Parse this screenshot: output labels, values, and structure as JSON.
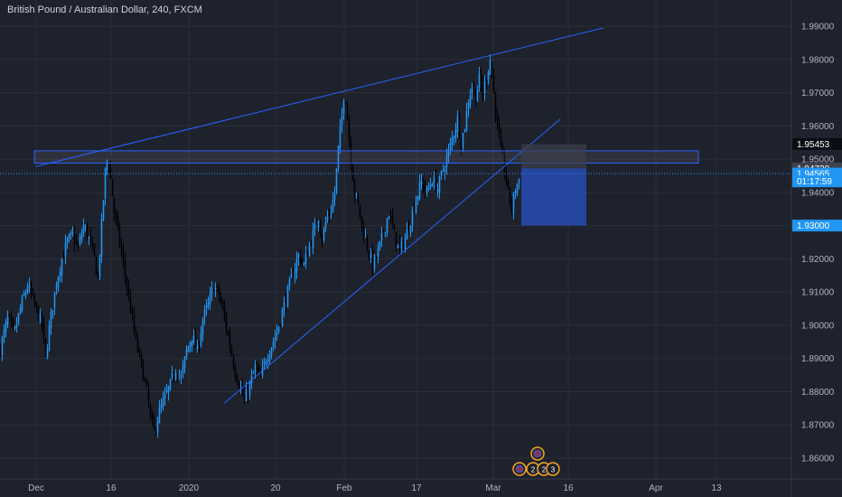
{
  "header": {
    "title": "British Pound / Australian Dollar, 240, FXCM"
  },
  "colors": {
    "background": "#1e222d",
    "up_candle": "#2196f3",
    "down_candle": "#000000",
    "trendline": "#2962ff",
    "grid": "#2a2e39",
    "axis_text": "#b2b5be",
    "target_zone": "#2962ff"
  },
  "chart_data": {
    "type": "candlestick",
    "x_ticks": [
      "Dec",
      "16",
      "2020",
      "20",
      "Feb",
      "17",
      "Mar",
      "16",
      "Apr",
      "13"
    ],
    "y_ticks": [
      "1.99000",
      "1.98000",
      "1.97000",
      "1.96000",
      "1.95000",
      "1.94000",
      "1.93000",
      "1.92000",
      "1.91000",
      "1.90000",
      "1.89000",
      "1.88000",
      "1.87000",
      "1.86000"
    ],
    "ylim": [
      1.856,
      1.998
    ],
    "price_path": [
      [
        0,
        1.893
      ],
      [
        8,
        1.902
      ],
      [
        15,
        1.897
      ],
      [
        22,
        1.905
      ],
      [
        30,
        1.912
      ],
      [
        38,
        1.906
      ],
      [
        46,
        1.9
      ],
      [
        50,
        1.89
      ],
      [
        55,
        1.901
      ],
      [
        62,
        1.913
      ],
      [
        68,
        1.92
      ],
      [
        74,
        1.925
      ],
      [
        80,
        1.927
      ],
      [
        86,
        1.923
      ],
      [
        92,
        1.93
      ],
      [
        98,
        1.926
      ],
      [
        104,
        1.92
      ],
      [
        108,
        1.914
      ],
      [
        112,
        1.93
      ],
      [
        116,
        1.946
      ],
      [
        119,
        1.951
      ],
      [
        122,
        1.944
      ],
      [
        126,
        1.934
      ],
      [
        132,
        1.925
      ],
      [
        138,
        1.915
      ],
      [
        144,
        1.905
      ],
      [
        150,
        1.895
      ],
      [
        156,
        1.888
      ],
      [
        162,
        1.88
      ],
      [
        166,
        1.872
      ],
      [
        170,
        1.868
      ],
      [
        176,
        1.874
      ],
      [
        182,
        1.878
      ],
      [
        188,
        1.882
      ],
      [
        194,
        1.887
      ],
      [
        200,
        1.884
      ],
      [
        206,
        1.892
      ],
      [
        212,
        1.897
      ],
      [
        218,
        1.892
      ],
      [
        224,
        1.902
      ],
      [
        230,
        1.906
      ],
      [
        236,
        1.912
      ],
      [
        242,
        1.909
      ],
      [
        248,
        1.902
      ],
      [
        254,
        1.894
      ],
      [
        260,
        1.886
      ],
      [
        266,
        1.881
      ],
      [
        270,
        1.877
      ],
      [
        276,
        1.882
      ],
      [
        282,
        1.887
      ],
      [
        288,
        1.884
      ],
      [
        294,
        1.89
      ],
      [
        300,
        1.894
      ],
      [
        306,
        1.898
      ],
      [
        312,
        1.904
      ],
      [
        318,
        1.91
      ],
      [
        324,
        1.916
      ],
      [
        330,
        1.921
      ],
      [
        336,
        1.918
      ],
      [
        342,
        1.924
      ],
      [
        348,
        1.929
      ],
      [
        352,
        1.933
      ],
      [
        356,
        1.926
      ],
      [
        360,
        1.931
      ],
      [
        366,
        1.935
      ],
      [
        370,
        1.94
      ],
      [
        374,
        1.953
      ],
      [
        378,
        1.963
      ],
      [
        381,
        1.972
      ],
      [
        384,
        1.962
      ],
      [
        388,
        1.95
      ],
      [
        392,
        1.94
      ],
      [
        396,
        1.936
      ],
      [
        400,
        1.93
      ],
      [
        406,
        1.924
      ],
      [
        412,
        1.918
      ],
      [
        418,
        1.922
      ],
      [
        424,
        1.928
      ],
      [
        430,
        1.934
      ],
      [
        436,
        1.927
      ],
      [
        442,
        1.922
      ],
      [
        448,
        1.926
      ],
      [
        454,
        1.932
      ],
      [
        460,
        1.938
      ],
      [
        466,
        1.943
      ],
      [
        472,
        1.94
      ],
      [
        478,
        1.944
      ],
      [
        484,
        1.941
      ],
      [
        490,
        1.947
      ],
      [
        496,
        1.952
      ],
      [
        502,
        1.958
      ],
      [
        506,
        1.962
      ],
      [
        510,
        1.955
      ],
      [
        514,
        1.96
      ],
      [
        518,
        1.968
      ],
      [
        522,
        1.972
      ],
      [
        526,
        1.969
      ],
      [
        530,
        1.974
      ],
      [
        534,
        1.97
      ],
      [
        538,
        1.975
      ],
      [
        542,
        1.98
      ],
      [
        546,
        1.97
      ],
      [
        550,
        1.96
      ],
      [
        554,
        1.952
      ],
      [
        558,
        1.947
      ],
      [
        562,
        1.94
      ],
      [
        566,
        1.935
      ],
      [
        570,
        1.941
      ],
      [
        574,
        1.944
      ]
    ],
    "resistance_zone": {
      "x_start": 38,
      "x_end": 773,
      "y_low": 1.9488,
      "y_high": 1.9525
    },
    "upper_trendline": {
      "start": [
        40,
        1.9478
      ],
      "end": [
        668,
        1.9895
      ]
    },
    "lower_trendline": {
      "start": [
        248,
        1.8765
      ],
      "end": [
        620,
        1.962
      ]
    },
    "short_position": {
      "x_start": 577,
      "x_end": 649,
      "entry": 1.9472,
      "stop": 1.9545,
      "target": 1.93
    },
    "current_price": 1.9456,
    "price_labels": [
      {
        "text": "1.95453",
        "value": 1.95453,
        "style": "dark"
      },
      {
        "text": "1.94720",
        "value": 1.9472,
        "style": "gray"
      },
      {
        "text": "1.94565",
        "value": 1.94565,
        "style": "blue"
      },
      {
        "text": "01:17:59",
        "value": 1.9433,
        "style": "blue"
      },
      {
        "text": "1.93000",
        "value": 1.93,
        "style": "blue"
      }
    ],
    "event_markers": [
      {
        "x": 595,
        "row": 0,
        "label": ""
      },
      {
        "x": 575,
        "row": 1,
        "label": ""
      },
      {
        "x": 590,
        "row": 1,
        "label": "2"
      },
      {
        "x": 602,
        "row": 1,
        "label": "2"
      },
      {
        "x": 612,
        "row": 1,
        "label": "3"
      }
    ]
  }
}
